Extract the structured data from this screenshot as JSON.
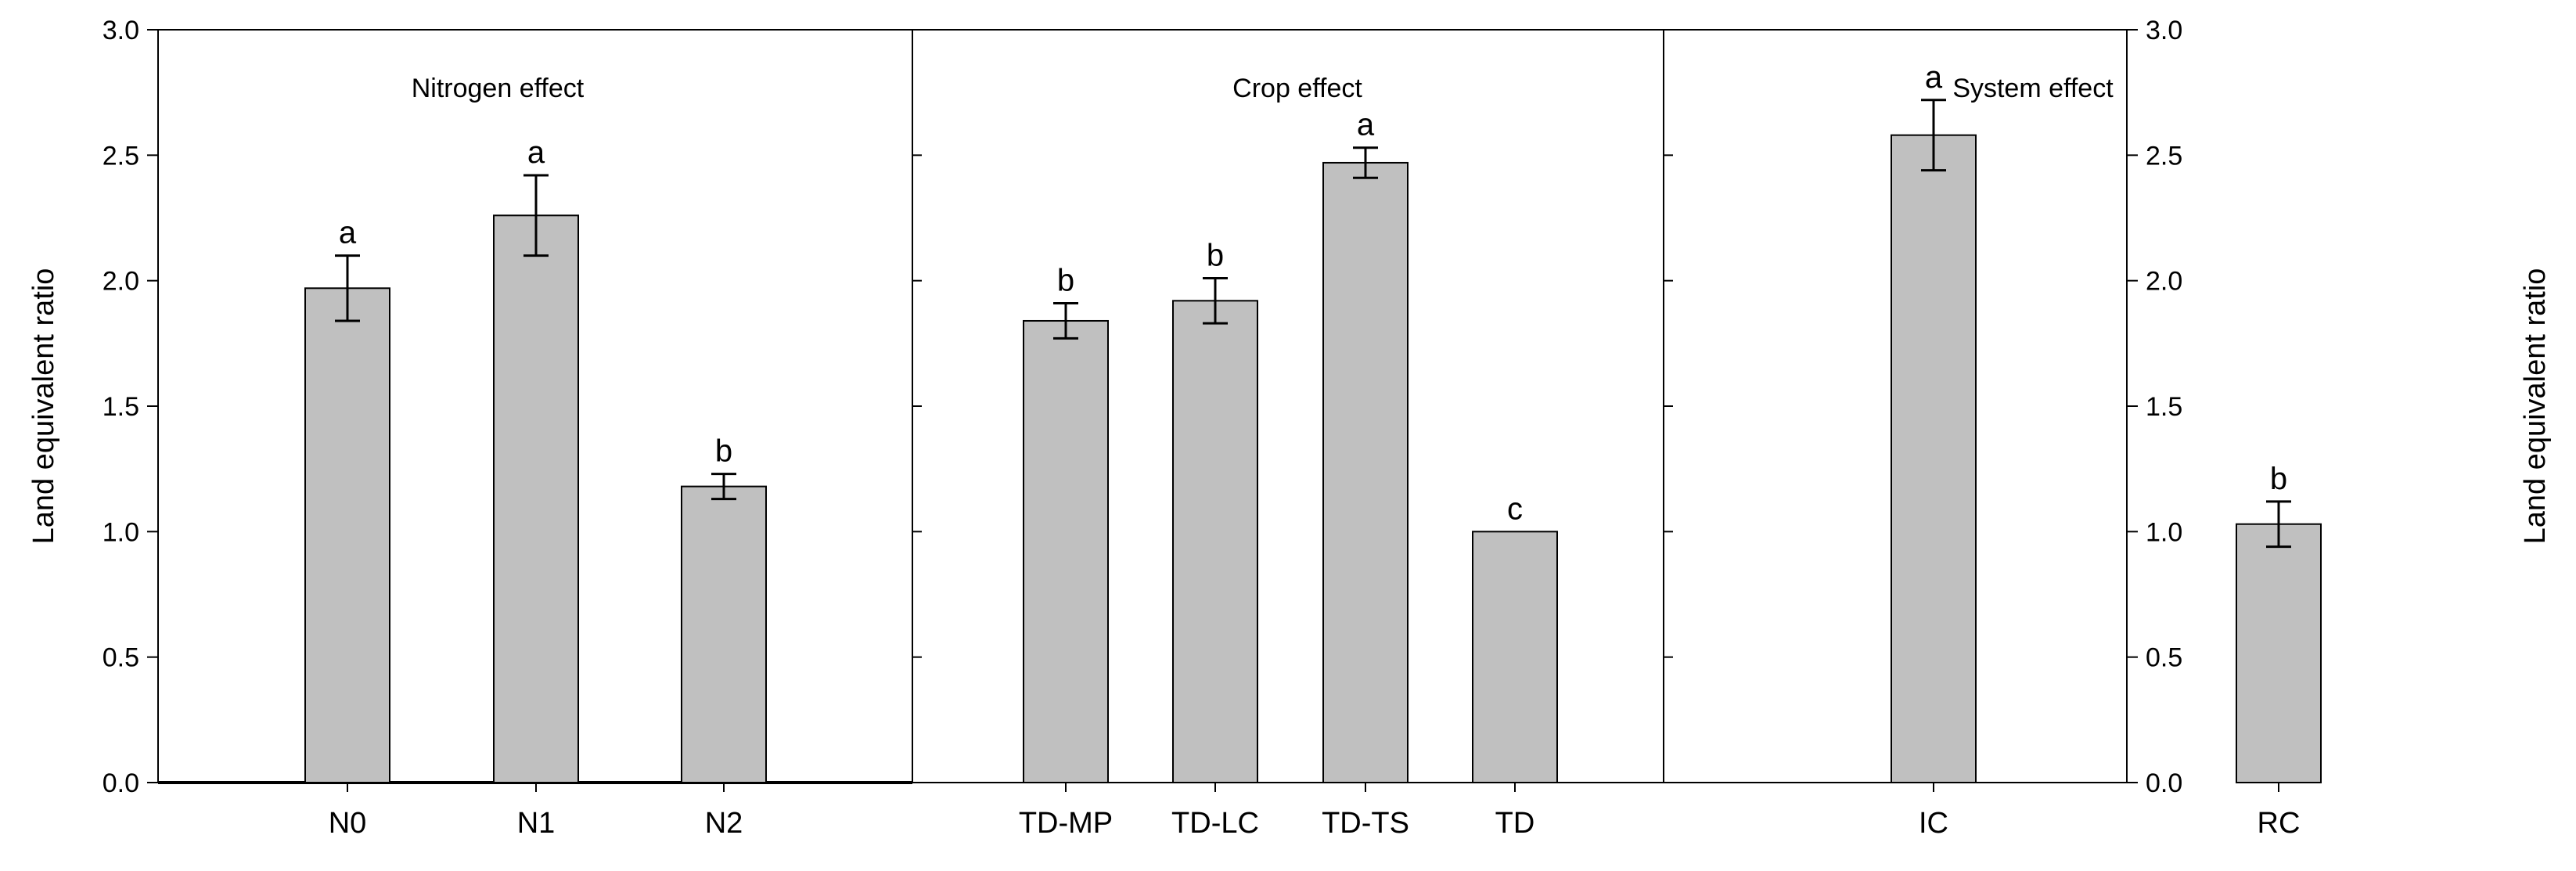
{
  "chart_data": {
    "type": "bar",
    "ylabel_left": "Land equivalent ratio",
    "ylabel_right": "Land equivalent ratio",
    "ylim": [
      0,
      3.0
    ],
    "yticks": [
      "0.0",
      "0.5",
      "1.0",
      "1.5",
      "2.0",
      "2.5",
      "3.0"
    ],
    "bar_color": "#c0c0c0",
    "panels": [
      {
        "title": "Nitrogen effect",
        "bars": [
          {
            "category": "N0",
            "value": 1.97,
            "error": 0.13,
            "letter": "a"
          },
          {
            "category": "N1",
            "value": 2.26,
            "error": 0.16,
            "letter": "a"
          },
          {
            "category": "N2",
            "value": 1.18,
            "error": 0.05,
            "letter": "b"
          }
        ]
      },
      {
        "title": "Crop effect",
        "bars": [
          {
            "category": "TD-MP",
            "value": 1.84,
            "error": 0.07,
            "letter": "b"
          },
          {
            "category": "TD-LC",
            "value": 1.92,
            "error": 0.09,
            "letter": "b"
          },
          {
            "category": "TD-TS",
            "value": 2.47,
            "error": 0.06,
            "letter": "a"
          },
          {
            "category": "TD",
            "value": 1.0,
            "error": 0,
            "letter": "c"
          }
        ]
      },
      {
        "title": "System effect",
        "bars": [
          {
            "category": "IC",
            "value": 2.58,
            "error": 0.14,
            "letter": "a"
          },
          {
            "category": "RC",
            "value": 1.03,
            "error": 0.09,
            "letter": "b"
          }
        ]
      }
    ]
  }
}
